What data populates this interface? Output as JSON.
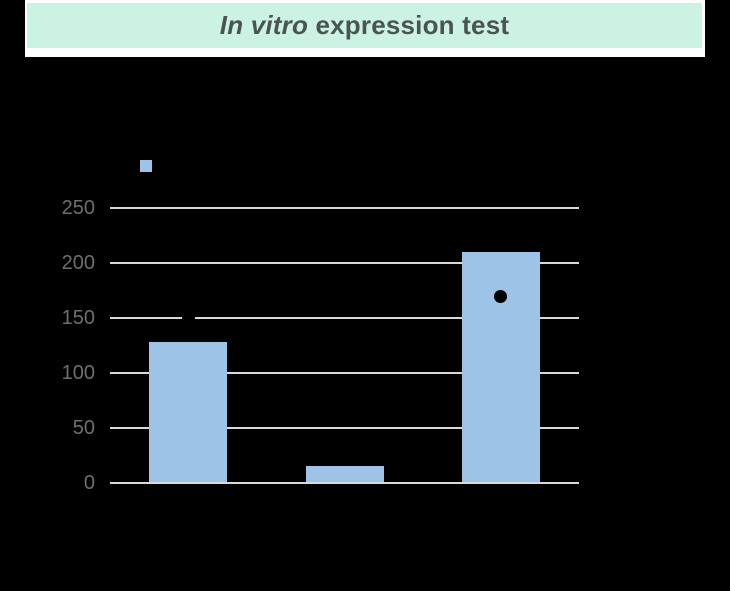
{
  "header": {
    "title_italic": "In vitro",
    "title_rest": " expression test"
  },
  "colors": {
    "page_bg": "#000000",
    "banner_bg": "#ccf2e4",
    "banner_frame": "#ffffff",
    "title_text": "#4a5454",
    "bar_fill": "#9dc3e6",
    "gridline": "#d9d9d9",
    "axis_line": "#d9d9d9",
    "tick_label": "#6e6e6e",
    "point": "#000000"
  },
  "chart_data": {
    "type": "bar",
    "title": "In vitro expression test",
    "categories": [
      "",
      "",
      ""
    ],
    "bars": [
      128,
      15,
      210
    ],
    "points": [
      {
        "bar_index": 0,
        "value": 150
      },
      {
        "bar_index": 2,
        "value": 170
      }
    ],
    "yticks": [
      0,
      50,
      100,
      150,
      200,
      250
    ],
    "ylim": [
      0,
      275
    ],
    "grid": true,
    "xlabel": "",
    "ylabel": "",
    "legend": {
      "swatch_only": true,
      "swatch_color": "#9dc3e6"
    }
  }
}
